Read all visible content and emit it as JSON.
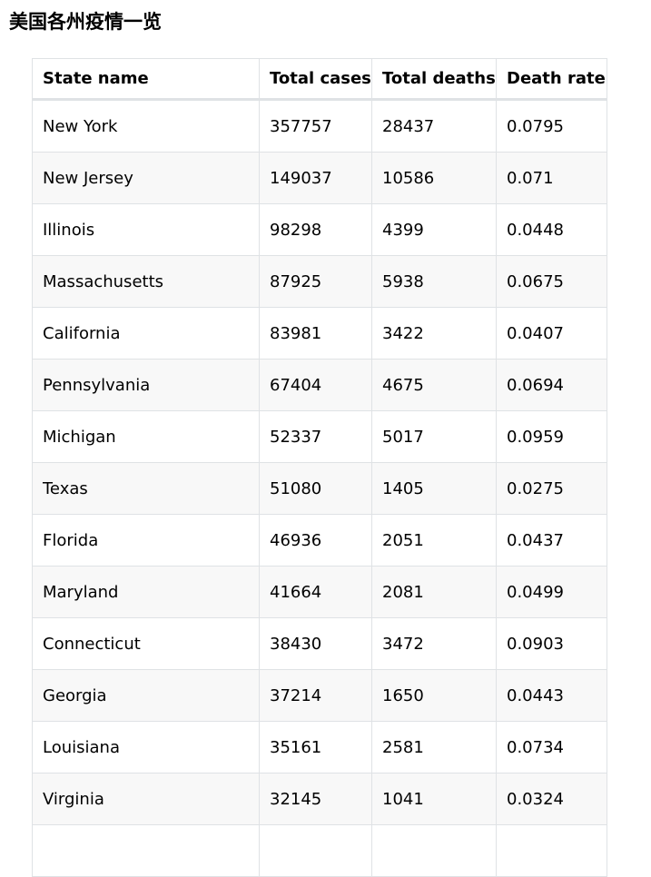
{
  "page": {
    "title": "美国各州疫情一览"
  },
  "table": {
    "headers": [
      "State name",
      "Total cases",
      "Total deaths",
      "Death rate"
    ],
    "rows": [
      [
        "New York",
        "357757",
        "28437",
        "0.0795"
      ],
      [
        "New Jersey",
        "149037",
        "10586",
        "0.071"
      ],
      [
        "Illinois",
        "98298",
        "4399",
        "0.0448"
      ],
      [
        "Massachusetts",
        "87925",
        "5938",
        "0.0675"
      ],
      [
        "California",
        "83981",
        "3422",
        "0.0407"
      ],
      [
        "Pennsylvania",
        "67404",
        "4675",
        "0.0694"
      ],
      [
        "Michigan",
        "52337",
        "5017",
        "0.0959"
      ],
      [
        "Texas",
        "51080",
        "1405",
        "0.0275"
      ],
      [
        "Florida",
        "46936",
        "2051",
        "0.0437"
      ],
      [
        "Maryland",
        "41664",
        "2081",
        "0.0499"
      ],
      [
        "Connecticut",
        "38430",
        "3472",
        "0.0903"
      ],
      [
        "Georgia",
        "37214",
        "1650",
        "0.0443"
      ],
      [
        "Louisiana",
        "35161",
        "2581",
        "0.0734"
      ],
      [
        "Virginia",
        "32145",
        "1041",
        "0.0324"
      ],
      [
        "",
        "",
        "",
        ""
      ]
    ]
  }
}
